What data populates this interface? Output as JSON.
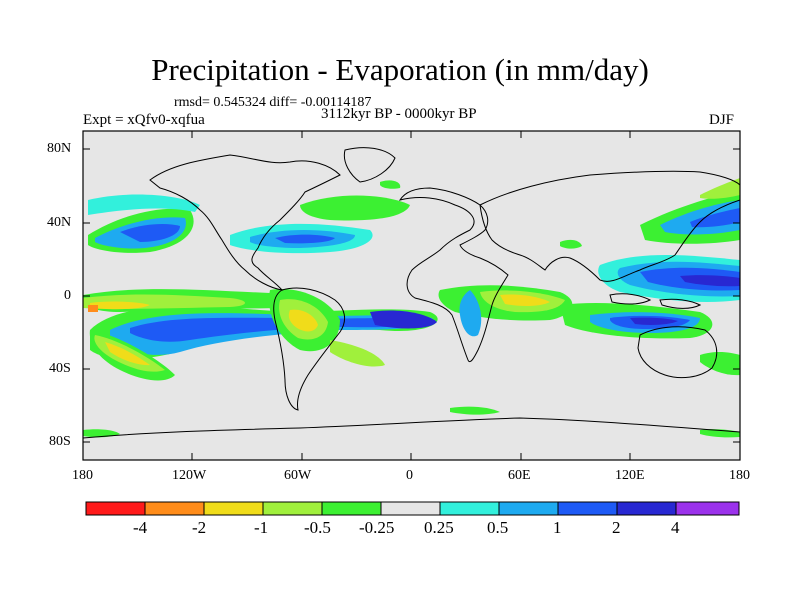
{
  "title": "Precipitation - Evaporation (in mm/day)",
  "stats": "rmsd= 0.545324 diff= -0.00114187",
  "experiment": "Expt = xQfv0-xqfua",
  "period": "3112kyr BP - 0000kyr BP",
  "season": "DJF",
  "lat_labels": [
    "80N",
    "40N",
    "0",
    "40S",
    "80S"
  ],
  "lon_labels": [
    "180",
    "120W",
    "60W",
    "0",
    "60E",
    "120E",
    "180"
  ],
  "colorbar": {
    "labels": [
      "-4",
      "-2",
      "-1",
      "-0.5",
      "-0.25",
      "0.25",
      "0.5",
      "1",
      "2",
      "4"
    ],
    "colors": [
      "#ff1a1a",
      "#ff8c1a",
      "#f0dc1a",
      "#a0f03c",
      "#3cf032",
      "#e6e6e6",
      "#32f0dc",
      "#1eaaf0",
      "#1e5af5",
      "#2828d2",
      "#9b32eb"
    ]
  },
  "palette": {
    "neutral": "#e6e6e6",
    "coast": "#000000"
  }
}
